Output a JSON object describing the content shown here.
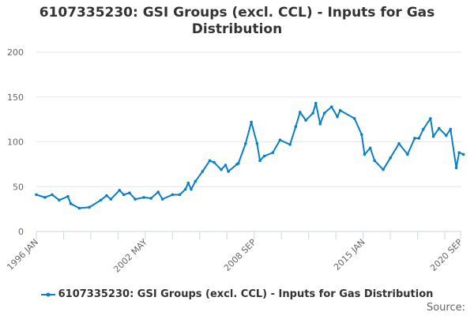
{
  "title_lines": [
    "6107335230: GSI Groups (excl. CCL) - Inputs for Gas",
    "Distribution"
  ],
  "source_label": "Source:",
  "chart_data": {
    "type": "line",
    "title": "6107335230: GSI Groups (excl. CCL) - Inputs for Gas Distribution",
    "xlabel": "",
    "ylabel": "",
    "ylim": [
      0,
      200
    ],
    "yticks": [
      0,
      50,
      100,
      150,
      200
    ],
    "xlim": [
      "1996-01",
      "2020-11"
    ],
    "xtick_labels": [
      "1996 JAN",
      "2002 MAY",
      "2008 SEP",
      "2015 JAN",
      "2020 SEP"
    ],
    "xtick_dates": [
      "1996-01",
      "2002-05",
      "2008-09",
      "2015-01",
      "2020-09"
    ],
    "minor_tick_interval_months": 19,
    "grid": true,
    "legend": "bottom",
    "color": "#0a7fc2",
    "series": [
      {
        "name": "6107335230: GSI Groups (excl. CCL) - Inputs for Gas Distribution",
        "x": [
          "1996-01",
          "1996-07",
          "1996-12",
          "1997-05",
          "1997-11",
          "1998-01",
          "1998-07",
          "1999-02",
          "1999-10",
          "2000-02",
          "2000-05",
          "2000-11",
          "2001-02",
          "2001-06",
          "2001-10",
          "2002-04",
          "2002-09",
          "2003-02",
          "2003-05",
          "2003-12",
          "2004-05",
          "2004-09",
          "2004-11",
          "2005-01",
          "2005-04",
          "2005-09",
          "2006-02",
          "2006-05",
          "2006-10",
          "2007-01",
          "2007-03",
          "2007-09",
          "2007-10",
          "2008-03",
          "2008-07",
          "2008-11",
          "2009-01",
          "2009-04",
          "2009-10",
          "2010-03",
          "2010-10",
          "2011-02",
          "2011-05",
          "2011-09",
          "2012-02",
          "2012-04",
          "2012-07",
          "2012-10",
          "2013-03",
          "2013-07",
          "2013-09",
          "2014-07",
          "2014-12",
          "2015-02",
          "2015-06",
          "2015-09",
          "2016-03",
          "2016-08",
          "2017-02",
          "2017-08",
          "2018-01",
          "2018-04",
          "2018-07",
          "2018-12",
          "2019-02",
          "2019-06",
          "2019-11",
          "2020-02",
          "2020-06",
          "2020-08",
          "2020-11"
        ],
        "values": [
          41,
          38,
          41,
          35,
          39,
          31,
          26,
          27,
          35,
          40,
          36,
          46,
          41,
          43,
          36,
          38,
          37,
          44,
          36,
          41,
          41,
          47,
          54,
          47,
          56,
          67,
          79,
          77,
          69,
          74,
          67,
          75,
          76,
          98,
          122,
          98,
          79,
          84,
          88,
          102,
          97,
          117,
          133,
          124,
          132,
          143,
          120,
          132,
          139,
          128,
          135,
          126,
          108,
          86,
          93,
          79,
          69,
          82,
          98,
          86,
          104,
          104,
          114,
          126,
          106,
          115,
          107,
          114,
          71,
          88,
          86
        ]
      }
    ]
  }
}
